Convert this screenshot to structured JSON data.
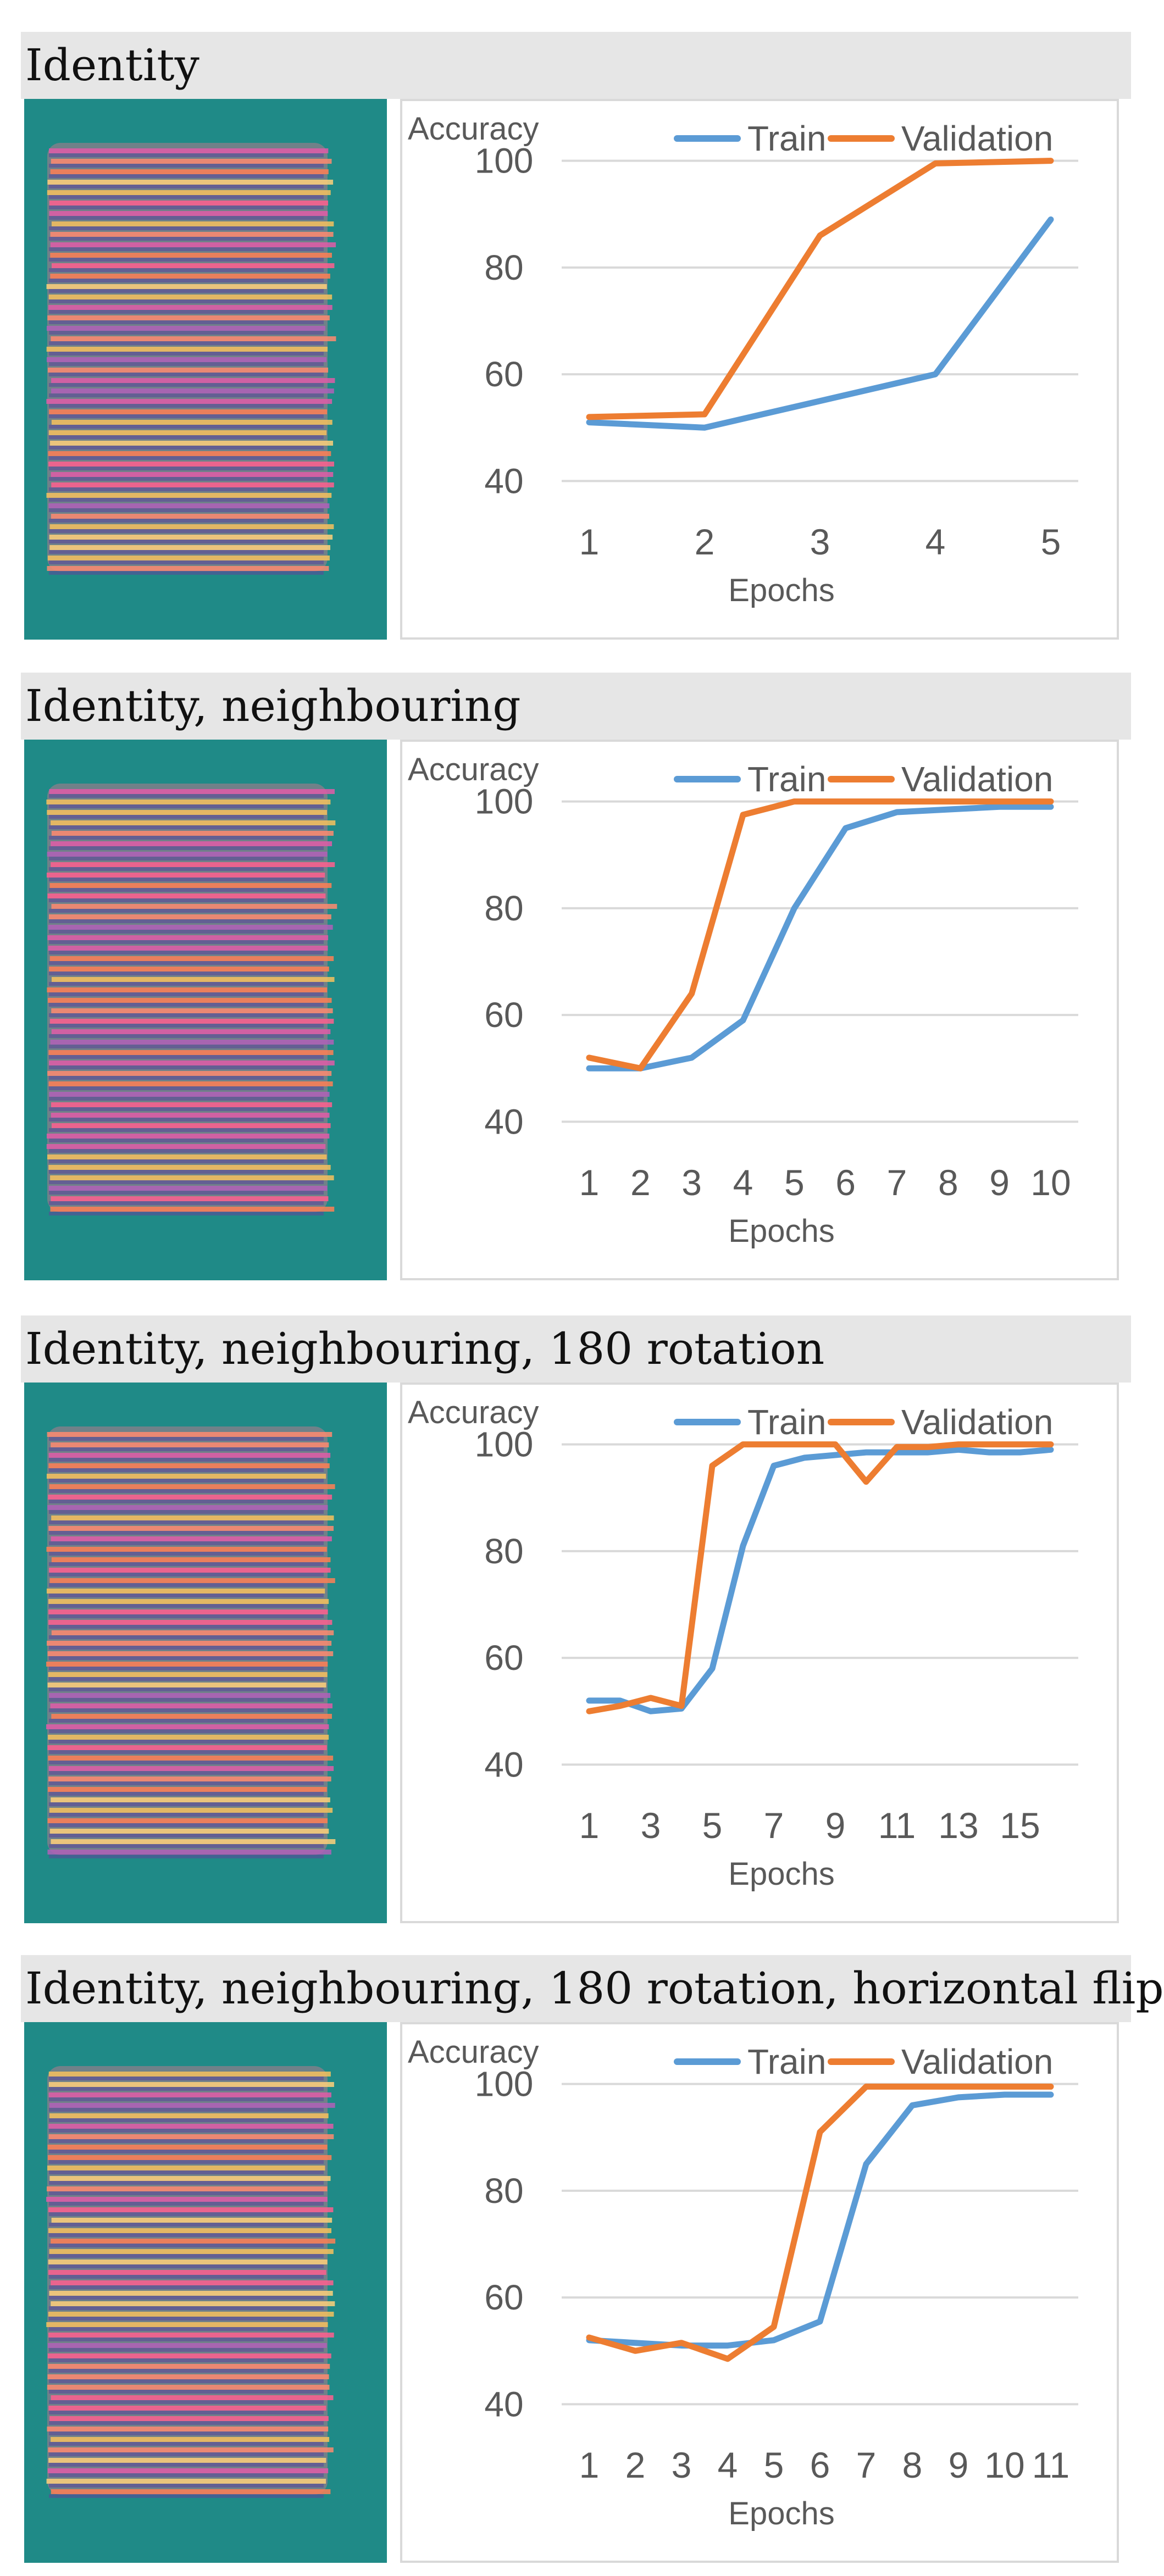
{
  "colors": {
    "train": "#5b9bd5",
    "validation": "#ed7d31",
    "grid": "#d9d9d9",
    "axis_text": "#595959",
    "title_bg": "#e6e6e6",
    "thumbnail_bg": "#1f8a87"
  },
  "panels": [
    {
      "title": "Identity",
      "thumbnail": "striped-tensor-heatmap-image"
    },
    {
      "title": "Identity, neighbouring",
      "thumbnail": "striped-tensor-heatmap-image"
    },
    {
      "title": "Identity, neighbouring, 180 rotation",
      "thumbnail": "striped-tensor-heatmap-image"
    },
    {
      "title": "Identity, neighbouring, 180 rotation, horizontal flip",
      "thumbnail": "striped-tensor-heatmap-image"
    }
  ],
  "chart_data": [
    {
      "type": "line",
      "title": "",
      "xlabel": "Epochs",
      "ylabel": "Accuracy",
      "ylim": [
        35,
        105
      ],
      "yticks": [
        40,
        60,
        80,
        100
      ],
      "grid": true,
      "legend": "top-right",
      "x": [
        1,
        2,
        3,
        4,
        5
      ],
      "xtick_labels": [
        "1",
        "2",
        "3",
        "4",
        "5"
      ],
      "series": [
        {
          "name": "Train",
          "values": [
            51,
            50,
            55,
            60,
            89
          ]
        },
        {
          "name": "Validation",
          "values": [
            52,
            52.5,
            86,
            99.5,
            100
          ]
        }
      ]
    },
    {
      "type": "line",
      "title": "",
      "xlabel": "Epochs",
      "ylabel": "Accuracy",
      "ylim": [
        35,
        105
      ],
      "yticks": [
        40,
        60,
        80,
        100
      ],
      "grid": true,
      "legend": "top-right",
      "x": [
        1,
        2,
        3,
        4,
        5,
        6,
        7,
        8,
        9,
        10
      ],
      "xtick_labels": [
        "1",
        "2",
        "3",
        "4",
        "5",
        "6",
        "7",
        "8",
        "9",
        "10"
      ],
      "series": [
        {
          "name": "Train",
          "values": [
            50,
            50,
            52,
            59,
            80,
            95,
            98,
            98.5,
            99,
            99
          ]
        },
        {
          "name": "Validation",
          "values": [
            52,
            50,
            64,
            97.5,
            100,
            100,
            100,
            100,
            100,
            100
          ]
        }
      ]
    },
    {
      "type": "line",
      "title": "",
      "xlabel": "Epochs",
      "ylabel": "Accuracy",
      "ylim": [
        35,
        105
      ],
      "yticks": [
        40,
        60,
        80,
        100
      ],
      "grid": true,
      "legend": "top-right",
      "x": [
        1,
        2,
        3,
        4,
        5,
        6,
        7,
        8,
        9,
        10,
        11,
        12,
        13,
        14,
        15,
        16
      ],
      "xtick_labels": [
        "1",
        "3",
        "5",
        "7",
        "9",
        "11",
        "13",
        "15"
      ],
      "series": [
        {
          "name": "Train",
          "values": [
            52,
            52,
            50,
            50.5,
            58,
            81,
            96,
            97.5,
            98,
            98.5,
            98.5,
            98.5,
            99,
            98.5,
            98.5,
            99
          ]
        },
        {
          "name": "Validation",
          "values": [
            50,
            51,
            52.5,
            51,
            96,
            100,
            100,
            100,
            100,
            93,
            99.5,
            99.5,
            100,
            100,
            100,
            100
          ]
        }
      ]
    },
    {
      "type": "line",
      "title": "",
      "xlabel": "Epochs",
      "ylabel": "Accuracy",
      "ylim": [
        35,
        105
      ],
      "yticks": [
        40,
        60,
        80,
        100
      ],
      "grid": true,
      "legend": "top-right",
      "x": [
        1,
        2,
        3,
        4,
        5,
        6,
        7,
        8,
        9,
        10,
        11
      ],
      "xtick_labels": [
        "1",
        "2",
        "3",
        "4",
        "5",
        "6",
        "7",
        "8",
        "9",
        "10",
        "11"
      ],
      "series": [
        {
          "name": "Train",
          "values": [
            52,
            51.5,
            51,
            51,
            52,
            55.5,
            85,
            96,
            97.5,
            98,
            98
          ]
        },
        {
          "name": "Validation",
          "values": [
            52.5,
            50,
            51.5,
            48.5,
            54.5,
            91,
            99.5,
            99.5,
            99.5,
            99.5,
            99.5
          ]
        }
      ]
    }
  ]
}
